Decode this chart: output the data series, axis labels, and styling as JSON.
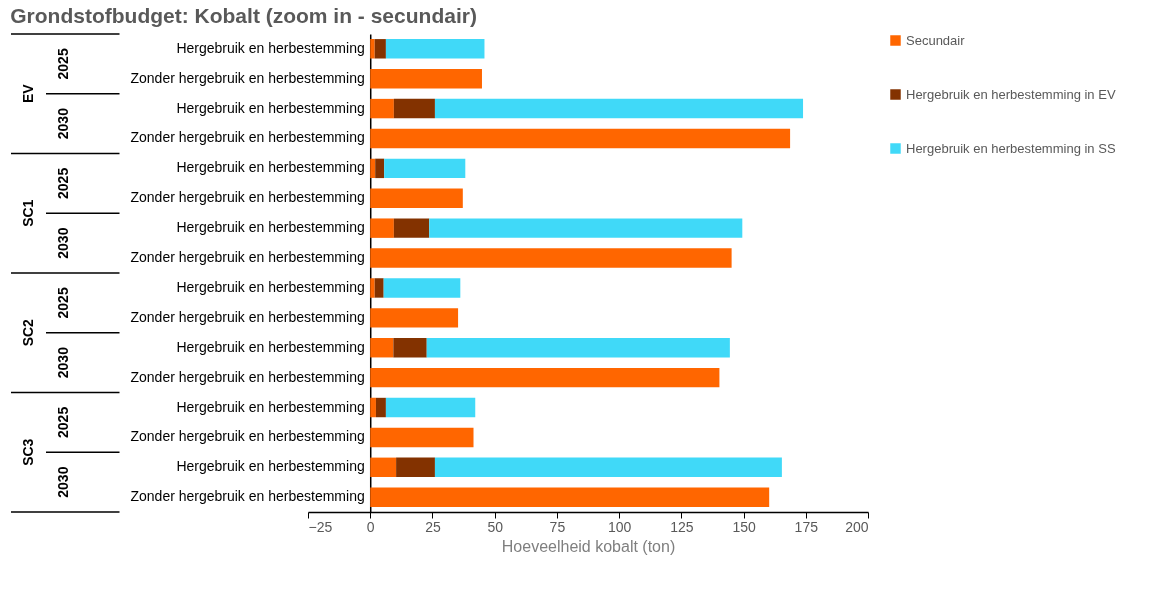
{
  "chart_data": {
    "type": "bar",
    "orientation": "horizontal",
    "stacked": true,
    "title": "Grondstofbudget: Kobalt (zoom in - secundair)",
    "xlabel": "Hoeveelheid kobalt (ton)",
    "categories": [
      "Hergebruik en herbestemming",
      "Zonder hergebruik en herbestemming",
      "Hergebruik en herbestemming",
      "Zonder hergebruik en herbestemming",
      "Hergebruik en herbestemming",
      "Zonder hergebruik en herbestemming",
      "Hergebruik en herbestemming",
      "Zonder hergebruik en herbestemming",
      "Hergebruik en herbestemming",
      "Zonder hergebruik en herbestemming",
      "Hergebruik en herbestemming",
      "Zonder hergebruik en herbestemming",
      "Hergebruik en herbestemming",
      "Zonder hergebruik en herbestemming",
      "Hergebruik en herbestemming",
      "Zonder hergebruik en herbestemming"
    ],
    "annotations": [
      "EV",
      "SC1",
      "SC2",
      "SC3",
      "2025",
      "2030",
      "2025",
      "2030",
      "2025",
      "2030",
      "2025",
      "2030"
    ],
    "series": [
      {
        "name": "Secundair",
        "color": "#ff6600",
        "values": [
          1.8,
          44.9,
          9.5,
          168.7,
          2.0,
          37.2,
          9.5,
          145.2,
          1.8,
          35.3,
          9.3,
          140.3,
          2.3,
          41.5,
          10.4,
          160.3
        ]
      },
      {
        "name": "Hergebruik en herbestemming in EV",
        "color": "#833200",
        "values": [
          4.5,
          null,
          16.5,
          null,
          3.6,
          null,
          14.2,
          null,
          3.6,
          null,
          13.4,
          null,
          4.0,
          null,
          15.6,
          null
        ]
      },
      {
        "name": "Hergebruik en herbestemming in SS",
        "color": "#40d9f8",
        "values": [
          39.6,
          null,
          147.9,
          null,
          32.6,
          null,
          125.8,
          null,
          30.8,
          null,
          121.8,
          null,
          35.9,
          null,
          139.4,
          null
        ]
      }
    ],
    "xlim": [
      -25,
      200
    ],
    "xticks": [
      -25,
      0,
      25,
      50,
      75,
      100,
      125,
      150,
      175,
      200
    ],
    "grid": false,
    "legend": "right"
  }
}
